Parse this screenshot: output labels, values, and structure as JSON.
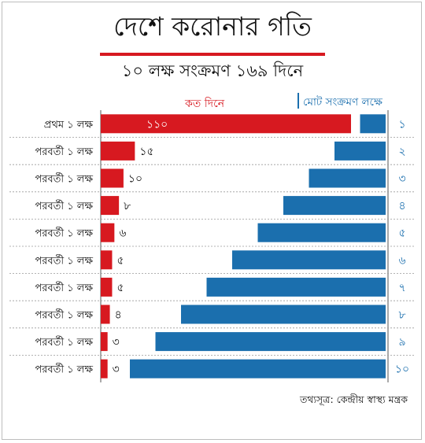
{
  "chart_data": {
    "type": "bar",
    "title": "দেশে করোনার গতি",
    "subtitle": "১০ লক্ষ সংক্রমণ ১৬৯ দিনে",
    "series": [
      {
        "name": "কত দিনে",
        "color": "#d71920",
        "values": [
          110,
          15,
          10,
          8,
          6,
          5,
          5,
          4,
          3,
          3
        ],
        "labels": [
          "১১০",
          "১৫",
          "১০",
          "৮",
          "৬",
          "৫",
          "৫",
          "৪",
          "৩",
          "৩"
        ]
      },
      {
        "name": "মোট সংক্রমণ লক্ষে",
        "color": "#1b6fae",
        "values": [
          1,
          2,
          3,
          4,
          5,
          6,
          7,
          8,
          9,
          10
        ],
        "labels": [
          "১",
          "২",
          "৩",
          "৪",
          "৫",
          "৬",
          "৭",
          "৮",
          "৯",
          "১০"
        ]
      }
    ],
    "categories": [
      "প্রথম ১ লক্ষ",
      "পরবর্তী ১ লক্ষ",
      "পরবর্তী ১ লক্ষ",
      "পরবর্তী ১ লক্ষ",
      "পরবর্তী ১ লক্ষ",
      "পরবর্তী ১ লক্ষ",
      "পরবর্তী ১ লক্ষ",
      "পরবর্তী ১ লক্ষ",
      "পরবর্তী ১ লক্ষ",
      "পরবর্তী ১ লক্ষ"
    ],
    "xlim_days": [
      0,
      110
    ],
    "xlim_total": [
      0,
      10
    ]
  },
  "source": "তথ্যসূত্র: কেন্দ্রীয় স্বাস্থ্য মন্ত্রক"
}
